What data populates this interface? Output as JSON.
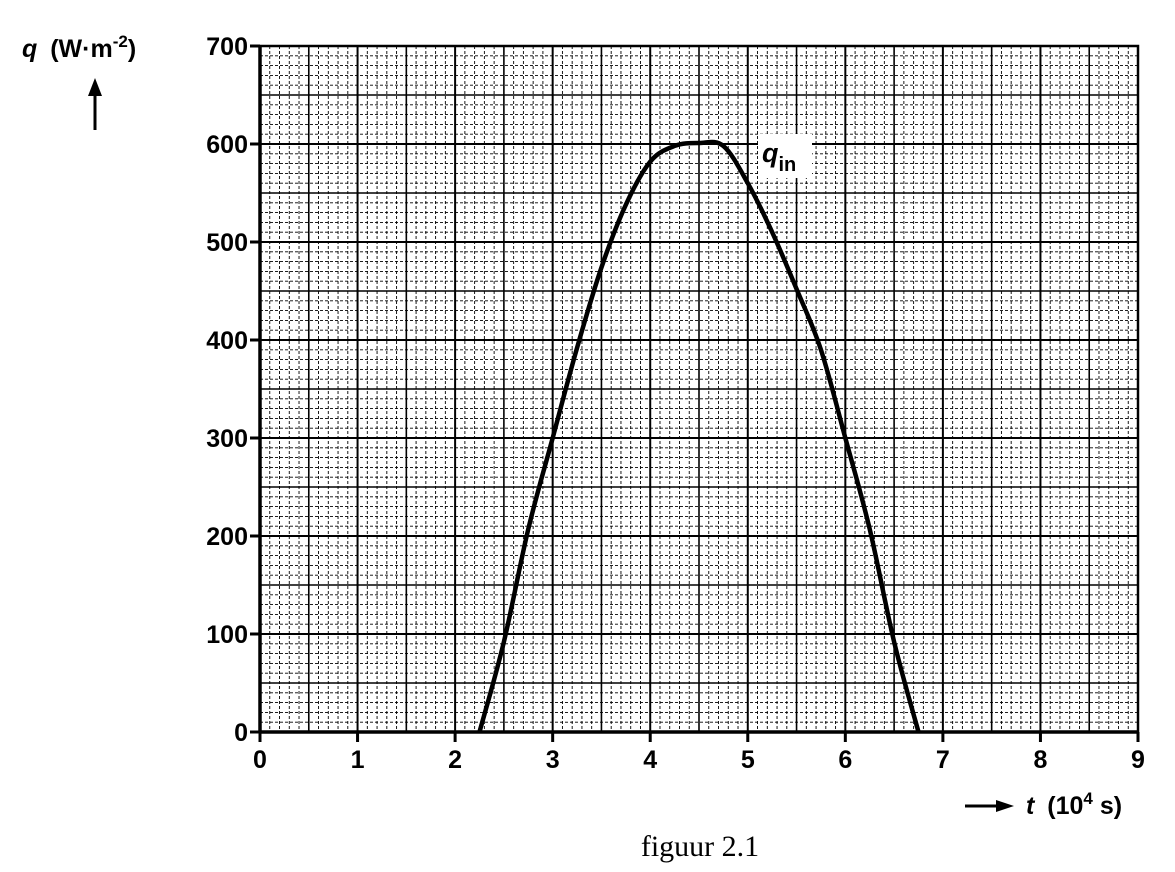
{
  "chart_data": {
    "type": "line",
    "title": "",
    "caption": "figuur 2.1",
    "xlabel": {
      "symbol": "t",
      "open": "(10",
      "exp": "4",
      "unit": " s)"
    },
    "ylabel": {
      "symbol": "q",
      "open": "(W·m",
      "exp": "-2",
      "close": ")"
    },
    "xlim": [
      0,
      9
    ],
    "ylim": [
      0,
      700
    ],
    "x_ticks": [
      "0",
      "1",
      "2",
      "3",
      "4",
      "5",
      "6",
      "7",
      "8",
      "9"
    ],
    "y_ticks": [
      "0",
      "100",
      "200",
      "300",
      "400",
      "500",
      "600",
      "700"
    ],
    "grid": true,
    "series": [
      {
        "name": "q_in",
        "label_main": "q",
        "label_sub": "in",
        "color": "#000000",
        "x": [
          2.25,
          2.5,
          2.75,
          3.0,
          3.25,
          3.5,
          3.75,
          4.0,
          4.25,
          4.5,
          4.75,
          5.0,
          5.25,
          5.5,
          5.75,
          6.0,
          6.25,
          6.5,
          6.75
        ],
        "y": [
          0,
          92,
          207,
          300,
          392,
          474,
          538,
          582,
          598,
          601,
          598,
          560,
          510,
          452,
          390,
          300,
          207,
          92,
          0
        ]
      }
    ]
  }
}
